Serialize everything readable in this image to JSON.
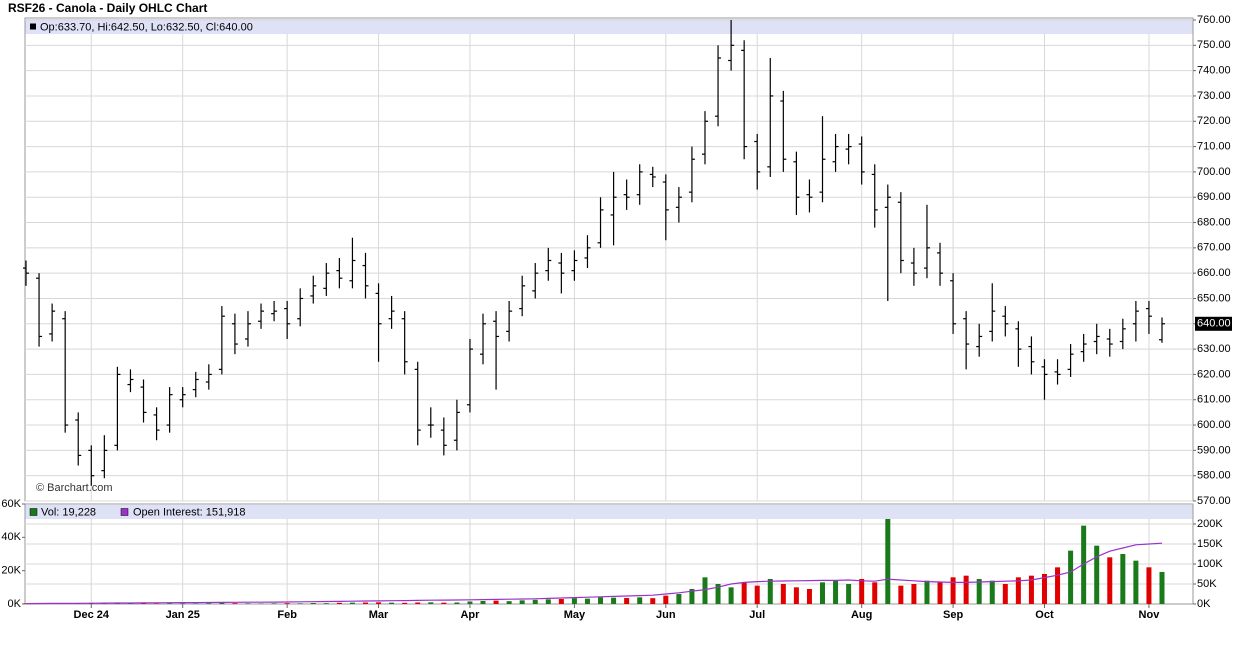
{
  "chart_data": {
    "type": "ohlc",
    "title": "RSF26 - Canola - Daily OHLC Chart",
    "info": "Op:633.70, Hi:642.50, Lo:632.50, Cl:640.00",
    "credit": "© Barchart.com",
    "categories": [
      null,
      null,
      null,
      null,
      null,
      "Dec 24",
      null,
      null,
      null,
      null,
      null,
      null,
      "Jan 25",
      null,
      null,
      null,
      null,
      null,
      null,
      null,
      "Feb",
      null,
      null,
      null,
      null,
      null,
      null,
      "Mar",
      null,
      null,
      null,
      null,
      null,
      null,
      "Apr",
      null,
      null,
      null,
      null,
      null,
      null,
      null,
      "May",
      null,
      null,
      null,
      null,
      null,
      null,
      "Jun",
      null,
      null,
      null,
      null,
      null,
      null,
      "Jul",
      null,
      null,
      null,
      null,
      null,
      null,
      null,
      "Aug",
      null,
      null,
      null,
      null,
      null,
      null,
      "Sep",
      null,
      null,
      null,
      null,
      null,
      null,
      "Oct",
      null,
      null,
      null,
      null,
      null,
      null,
      null,
      "Nov",
      null
    ],
    "open": [
      662,
      658,
      636,
      642,
      602,
      590,
      582,
      592,
      616,
      615,
      604,
      600,
      610,
      614,
      617,
      622,
      640,
      634,
      641,
      644,
      646,
      642,
      651,
      654,
      661,
      657,
      663,
      652,
      642,
      642,
      622,
      600,
      598,
      594,
      608,
      628,
      641,
      637,
      646,
      653,
      661,
      664,
      661,
      666,
      672,
      683,
      691,
      691,
      699,
      696,
      686,
      692,
      707,
      722,
      744,
      748,
      712,
      702,
      728,
      704,
      691,
      692,
      704,
      709,
      711,
      699,
      686,
      688,
      664,
      662,
      668,
      657,
      642,
      631,
      637,
      643,
      638,
      631,
      623,
      621,
      622,
      629,
      633,
      634,
      633,
      640,
      646,
      633.7
    ],
    "high": [
      665,
      660,
      648,
      645,
      605,
      592,
      596,
      623,
      622,
      618,
      607,
      615,
      615,
      621,
      624,
      647,
      644,
      645,
      648,
      649,
      649,
      654,
      659,
      664,
      666,
      674,
      668,
      656,
      651,
      645,
      625,
      607,
      603,
      610,
      634,
      644,
      645,
      649,
      659,
      664,
      670,
      668,
      669,
      675,
      690,
      700,
      697,
      703,
      702,
      699,
      694,
      710,
      724,
      750,
      760,
      752,
      715,
      745,
      732,
      708,
      697,
      722,
      715,
      715,
      714,
      703,
      695,
      692,
      670,
      687,
      672,
      660,
      645,
      640,
      656,
      647,
      641,
      635,
      626,
      626,
      632,
      636,
      640,
      638,
      642,
      649,
      649,
      642.5
    ],
    "low": [
      655,
      631,
      633,
      597,
      584,
      576,
      579,
      590,
      613,
      601,
      594,
      597,
      607,
      611,
      614,
      620,
      628,
      631,
      638,
      641,
      634,
      639,
      648,
      651,
      654,
      654,
      650,
      625,
      638,
      620,
      592,
      595,
      588,
      590,
      605,
      624,
      614,
      633,
      643,
      650,
      657,
      652,
      657,
      662,
      670,
      671,
      685,
      687,
      694,
      673,
      680,
      688,
      703,
      718,
      740,
      705,
      693,
      698,
      700,
      683,
      684,
      688,
      700,
      703,
      695,
      678,
      649,
      660,
      655,
      658,
      655,
      636,
      622,
      627,
      633,
      635,
      623,
      620,
      610,
      616,
      619,
      625,
      628,
      627,
      630,
      633,
      636,
      632.5
    ],
    "close": [
      660,
      635,
      645,
      600,
      588,
      580,
      590,
      620,
      618,
      605,
      598,
      612,
      612,
      618,
      620,
      643,
      632,
      640,
      645,
      645,
      640,
      650,
      655,
      660,
      658,
      665,
      655,
      640,
      645,
      625,
      598,
      600,
      592,
      605,
      630,
      640,
      635,
      645,
      655,
      660,
      665,
      660,
      665,
      670,
      685,
      690,
      690,
      700,
      698,
      685,
      690,
      705,
      720,
      745,
      750,
      710,
      700,
      730,
      705,
      690,
      690,
      705,
      710,
      710,
      700,
      685,
      690,
      665,
      660,
      670,
      660,
      640,
      632,
      635,
      645,
      640,
      630,
      625,
      620,
      620,
      628,
      632,
      635,
      632,
      638,
      645,
      643,
      640
    ],
    "bar_color": "#000000",
    "ylim": [
      570,
      760
    ],
    "yticks": [
      {
        "value": 570,
        "label": "570.00"
      },
      {
        "value": 580,
        "label": "580.00"
      },
      {
        "value": 590,
        "label": "590.00"
      },
      {
        "value": 600,
        "label": "600.00"
      },
      {
        "value": 610,
        "label": "610.00"
      },
      {
        "value": 620,
        "label": "620.00"
      },
      {
        "value": 630,
        "label": "630.00"
      },
      {
        "value": 640,
        "label": "640.00"
      },
      {
        "value": 650,
        "label": "650.00"
      },
      {
        "value": 660,
        "label": "660.00"
      },
      {
        "value": 670,
        "label": "670.00"
      },
      {
        "value": 680,
        "label": "680.00"
      },
      {
        "value": 690,
        "label": "690.00"
      },
      {
        "value": 700,
        "label": "700.00"
      },
      {
        "value": 710,
        "label": "710.00"
      },
      {
        "value": 720,
        "label": "720.00"
      },
      {
        "value": 730,
        "label": "730.00"
      },
      {
        "value": 740,
        "label": "740.00"
      },
      {
        "value": 750,
        "label": "750.00"
      },
      {
        "value": 760,
        "label": "760.00"
      }
    ],
    "last_price": {
      "value": 640,
      "label": "640.00"
    },
    "grid": true,
    "series": [
      {
        "name": "Vol: 19,228",
        "color": "#1a7a1a",
        "up_color": "#1a7a1a",
        "down_color": "#e00000",
        "values": [
          400,
          300,
          300,
          400,
          500,
          300,
          400,
          600,
          300,
          400,
          300,
          500,
          400,
          300,
          500,
          600,
          500,
          400,
          300,
          400,
          500,
          400,
          600,
          500,
          700,
          800,
          900,
          1000,
          800,
          700,
          900,
          1000,
          800,
          900,
          1500,
          1800,
          2000,
          1700,
          2200,
          2500,
          2800,
          3000,
          3500,
          3200,
          4000,
          3800,
          3600,
          4000,
          3500,
          5000,
          6000,
          9000,
          16000,
          12000,
          10000,
          13000,
          11000,
          15000,
          12000,
          10000,
          9000,
          13000,
          14000,
          12000,
          15000,
          13000,
          51000,
          11000,
          12000,
          14000,
          13000,
          16000,
          17000,
          15000,
          14000,
          12000,
          16000,
          17000,
          18000,
          22000,
          32000,
          47000,
          35000,
          28000,
          30000,
          26000,
          22000,
          19228
        ]
      },
      {
        "name": "Open Interest: 151,918",
        "color": "#9933cc",
        "axis": "y2",
        "values": [
          1000,
          1200,
          1400,
          1600,
          1800,
          2000,
          2200,
          2400,
          2600,
          2800,
          3000,
          3200,
          3400,
          3600,
          3800,
          4000,
          4200,
          4400,
          4600,
          4800,
          5000,
          5400,
          5800,
          6200,
          6600,
          7000,
          7400,
          7800,
          8200,
          8600,
          9000,
          9400,
          9800,
          10000,
          10500,
          11000,
          11500,
          12000,
          12500,
          13000,
          14000,
          15000,
          16000,
          17000,
          18000,
          19000,
          20000,
          21000,
          22000,
          25000,
          28000,
          32000,
          36000,
          42000,
          50000,
          54000,
          56000,
          57000,
          57500,
          58000,
          58500,
          59000,
          59000,
          60000,
          58000,
          57000,
          62000,
          60000,
          58000,
          56000,
          55000,
          54000,
          54000,
          55000,
          56000,
          57000,
          58000,
          60000,
          66000,
          72000,
          80000,
          100000,
          118000,
          132000,
          140000,
          148000,
          150000,
          151918
        ]
      }
    ],
    "vol_ylim": [
      0,
      60000
    ],
    "vol_yticks": [
      {
        "value": 0,
        "label": "0K"
      },
      {
        "value": 20000,
        "label": "20K"
      },
      {
        "value": 40000,
        "label": "40K"
      },
      {
        "value": 60000,
        "label": "60K"
      }
    ],
    "y2lim": [
      0,
      200000
    ],
    "y2ticks": [
      {
        "value": 0,
        "label": "0K"
      },
      {
        "value": 50000,
        "label": "50K"
      },
      {
        "value": 100000,
        "label": "100K"
      },
      {
        "value": 150000,
        "label": "150K"
      },
      {
        "value": 200000,
        "label": "200K"
      }
    ]
  }
}
